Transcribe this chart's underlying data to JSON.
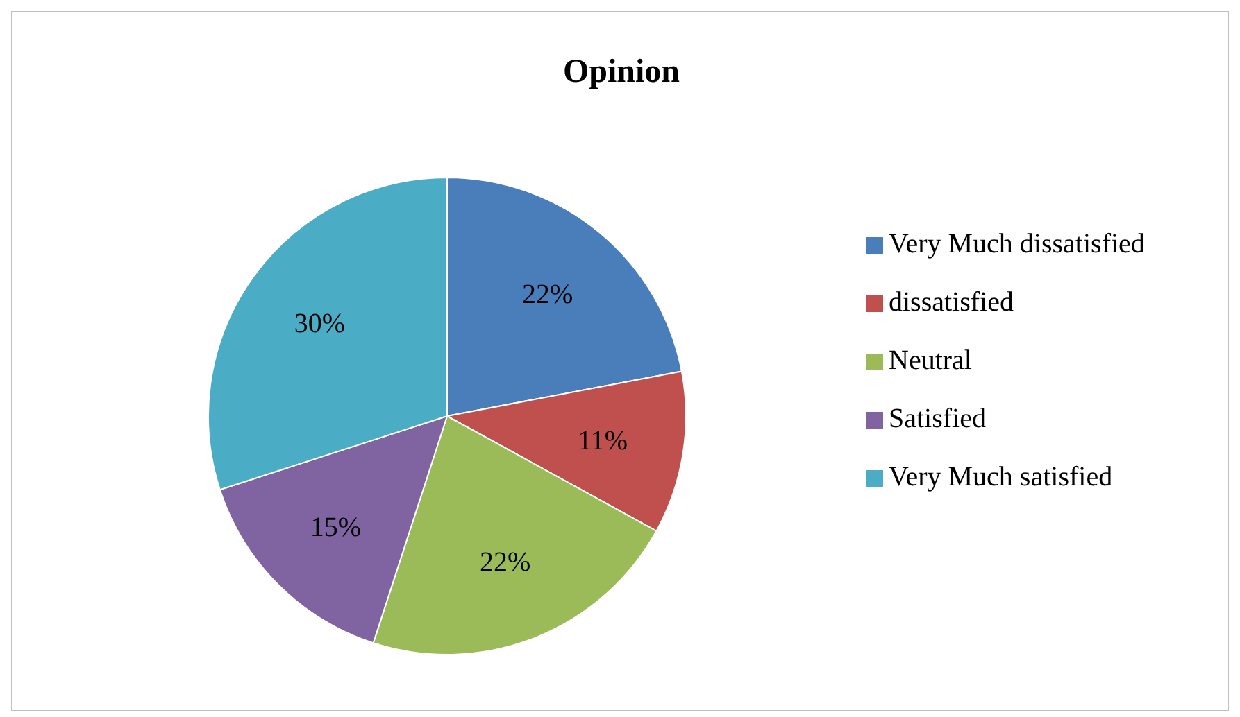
{
  "chart_data": {
    "type": "pie",
    "title": "Opinion",
    "categories": [
      "Very Much dissatisfied",
      "dissatisfied",
      "Neutral",
      "Satisfied",
      "Very Much satisfied"
    ],
    "values": [
      22,
      11,
      22,
      15,
      30
    ],
    "colors": [
      "#4a7ebb",
      "#c0504d",
      "#9bbb59",
      "#8064a2",
      "#4bacc6"
    ],
    "value_labels": [
      "22%",
      "11%",
      "22%",
      "15%",
      "30%"
    ],
    "legend": "right"
  }
}
